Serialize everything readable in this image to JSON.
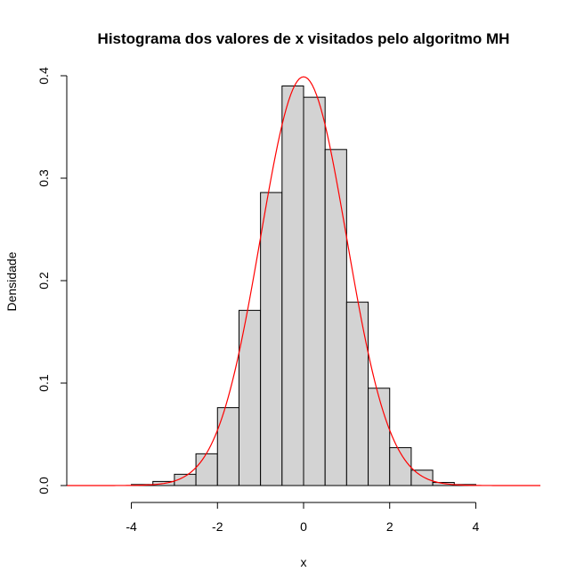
{
  "chart_data": {
    "type": "bar",
    "title": "Histograma dos valores de x visitados pelo algoritmo MH",
    "xlabel": "x",
    "ylabel": "Densidade",
    "xlim": [
      -5.5,
      5.5
    ],
    "ylim": [
      0,
      0.4
    ],
    "x_ticks": [
      "-4",
      "-2",
      "0",
      "2",
      "4"
    ],
    "y_ticks": [
      "0.0",
      "0.1",
      "0.2",
      "0.3",
      "0.4"
    ],
    "bin_width": 0.5,
    "bins": [
      {
        "x0": -4.0,
        "x1": -3.5,
        "density": 0.001
      },
      {
        "x0": -3.5,
        "x1": -3.0,
        "density": 0.004
      },
      {
        "x0": -3.0,
        "x1": -2.5,
        "density": 0.011
      },
      {
        "x0": -2.5,
        "x1": -2.0,
        "density": 0.031
      },
      {
        "x0": -2.0,
        "x1": -1.5,
        "density": 0.076
      },
      {
        "x0": -1.5,
        "x1": -1.0,
        "density": 0.171
      },
      {
        "x0": -1.0,
        "x1": -0.5,
        "density": 0.286
      },
      {
        "x0": -0.5,
        "x1": 0.0,
        "density": 0.39
      },
      {
        "x0": 0.0,
        "x1": 0.5,
        "density": 0.379
      },
      {
        "x0": 0.5,
        "x1": 1.0,
        "density": 0.328
      },
      {
        "x0": 1.0,
        "x1": 1.5,
        "density": 0.179
      },
      {
        "x0": 1.5,
        "x1": 2.0,
        "density": 0.095
      },
      {
        "x0": 2.0,
        "x1": 2.5,
        "density": 0.037
      },
      {
        "x0": 2.5,
        "x1": 3.0,
        "density": 0.015
      },
      {
        "x0": 3.0,
        "x1": 3.5,
        "density": 0.003
      },
      {
        "x0": 3.5,
        "x1": 4.0,
        "density": 0.001
      }
    ],
    "bar_fill": "#d3d3d3",
    "bar_stroke": "#000000",
    "curve": {
      "type": "line",
      "description_of_shape": "standard normal density",
      "mean": 0,
      "sd": 1,
      "color": "#ff0000"
    },
    "grid": false
  }
}
